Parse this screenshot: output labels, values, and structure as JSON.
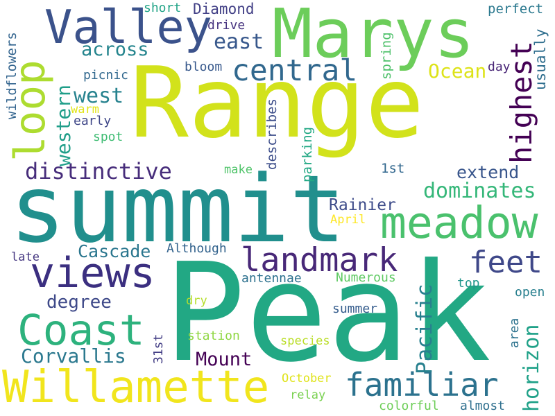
{
  "words": [
    {
      "text": "Range",
      "color": "#d2e21b"
    },
    {
      "text": "Peak",
      "color": "#22a884"
    },
    {
      "text": "summit",
      "color": "#218f8d"
    },
    {
      "text": "Marys",
      "color": "#6ccd5a"
    },
    {
      "text": "Valley",
      "color": "#3b528b"
    },
    {
      "text": "meadow",
      "color": "#4ac16d"
    },
    {
      "text": "Willamette",
      "color": "#f1e51d"
    },
    {
      "text": "views",
      "color": "#3b2f80"
    },
    {
      "text": "Coast",
      "color": "#2db27d"
    },
    {
      "text": "landmark",
      "color": "#482878"
    },
    {
      "text": "familiar",
      "color": "#2c728e"
    },
    {
      "text": "central",
      "color": "#31688e"
    },
    {
      "text": "loop",
      "color": "#addc30"
    },
    {
      "text": "highest",
      "color": "#440154"
    },
    {
      "text": "feet",
      "color": "#3f4889"
    },
    {
      "text": "distinctive",
      "color": "#472d7b"
    },
    {
      "text": "dominates",
      "color": "#35b779"
    },
    {
      "text": "Pacific",
      "color": "#27808e"
    },
    {
      "text": "horizon",
      "color": "#1fa188"
    },
    {
      "text": "western",
      "color": "#1f9e89"
    },
    {
      "text": "Mount",
      "color": "#440154"
    },
    {
      "text": "Corvallis",
      "color": "#2a788e"
    },
    {
      "text": "across",
      "color": "#25858e"
    },
    {
      "text": "east",
      "color": "#38588c"
    },
    {
      "text": "west",
      "color": "#26828e"
    },
    {
      "text": "Ocean",
      "color": "#dde318"
    },
    {
      "text": "extend",
      "color": "#39568c"
    },
    {
      "text": "Cascade",
      "color": "#2a768e"
    },
    {
      "text": "Rainier",
      "color": "#3e4c8a"
    },
    {
      "text": "degree",
      "color": "#3e4989"
    },
    {
      "text": "usually",
      "color": "#2e6e8e"
    },
    {
      "text": "Diamond",
      "color": "#424086"
    },
    {
      "text": "wildflowers",
      "color": "#32648e"
    },
    {
      "text": "spring",
      "color": "#4fc16b"
    },
    {
      "text": "describes",
      "color": "#3d4e8a"
    },
    {
      "text": "parking",
      "color": "#22a884"
    },
    {
      "text": "perfect",
      "color": "#2a788e"
    },
    {
      "text": "short",
      "color": "#20a386"
    },
    {
      "text": "drive",
      "color": "#46337f"
    },
    {
      "text": "day",
      "color": "#482576"
    },
    {
      "text": "bloom",
      "color": "#38598c"
    },
    {
      "text": "picnic",
      "color": "#31688e"
    },
    {
      "text": "warm",
      "color": "#e2e418"
    },
    {
      "text": "early",
      "color": "#3f4788"
    },
    {
      "text": "spot",
      "color": "#3fbc73"
    },
    {
      "text": "make",
      "color": "#50c46a"
    },
    {
      "text": "1st",
      "color": "#31678e"
    },
    {
      "text": "April",
      "color": "#fde725"
    },
    {
      "text": "Although",
      "color": "#33638d"
    },
    {
      "text": "late",
      "color": "#453781"
    },
    {
      "text": "antennae",
      "color": "#2d718e"
    },
    {
      "text": "Numerous",
      "color": "#5ec962"
    },
    {
      "text": "top",
      "color": "#1f968b"
    },
    {
      "text": "open",
      "color": "#277f8e"
    },
    {
      "text": "dry",
      "color": "#b5de2b"
    },
    {
      "text": "summer",
      "color": "#365d8d"
    },
    {
      "text": "area",
      "color": "#2c728e"
    },
    {
      "text": "station",
      "color": "#90d743"
    },
    {
      "text": "31st",
      "color": "#433e85"
    },
    {
      "text": "species",
      "color": "#bade28"
    },
    {
      "text": "October",
      "color": "#dfe318"
    },
    {
      "text": "relay",
      "color": "#7ad151"
    },
    {
      "text": "colorful",
      "color": "#6ece58"
    },
    {
      "text": "almost",
      "color": "#2e6f8e"
    }
  ]
}
